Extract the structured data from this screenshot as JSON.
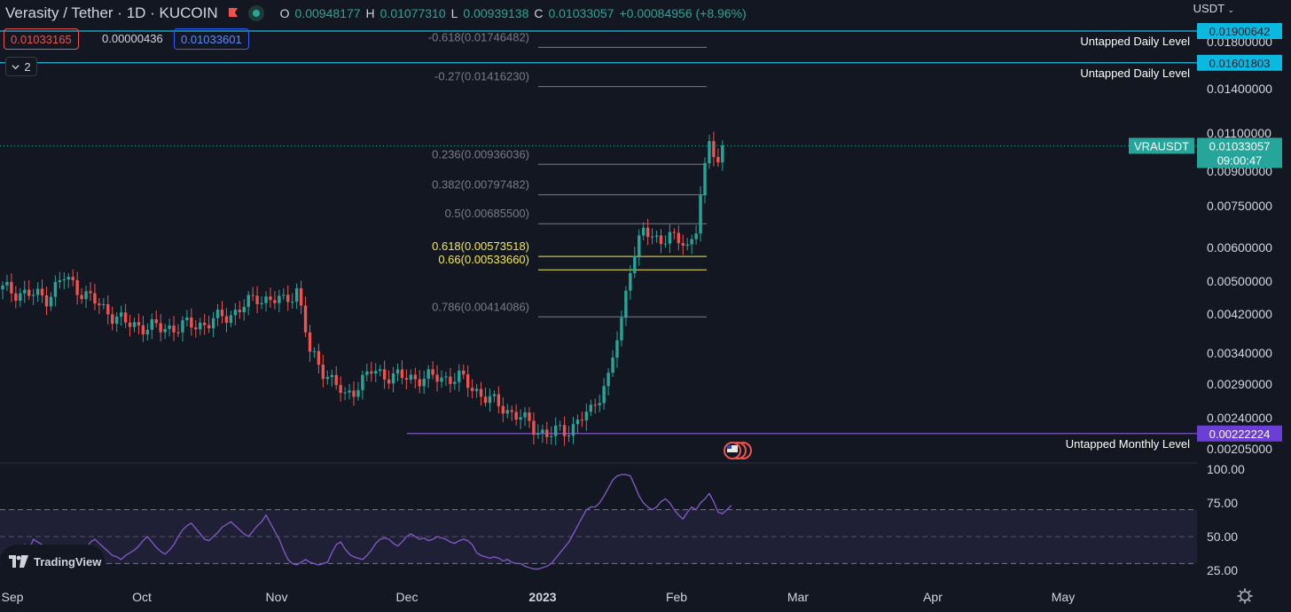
{
  "header": {
    "title": "Verasity / Tether · 1D · KUCOIN",
    "ohlc": [
      {
        "k": "O",
        "v": "0.00948177"
      },
      {
        "k": "H",
        "v": "0.01077310"
      },
      {
        "k": "L",
        "v": "0.00939138"
      },
      {
        "k": "C",
        "v": "0.01033057"
      }
    ],
    "change": "+0.00084956 (+8.96%)"
  },
  "quote": {
    "bid": "0.01033165",
    "spread": "0.00000436",
    "ask": "0.01033601"
  },
  "indicators_count": "2",
  "currency": "USDT",
  "branding": "TradingView",
  "price_axis_labels": [
    {
      "label": "0.01800000",
      "v": 0.018
    },
    {
      "label": "0.01400000",
      "v": 0.014
    },
    {
      "label": "0.01100000",
      "v": 0.011
    },
    {
      "label": "0.00900000",
      "v": 0.009
    },
    {
      "label": "0.00750000",
      "v": 0.0075
    },
    {
      "label": "0.00600000",
      "v": 0.006
    },
    {
      "label": "0.00500000",
      "v": 0.005
    },
    {
      "label": "0.00420000",
      "v": 0.0042
    },
    {
      "label": "0.00340000",
      "v": 0.0034
    },
    {
      "label": "0.00290000",
      "v": 0.0029
    },
    {
      "label": "0.00240000",
      "v": 0.0024
    },
    {
      "label": "0.00205000",
      "v": 0.00205
    }
  ],
  "levels": [
    {
      "name": "Untapped Daily Level",
      "value": "0.01900642",
      "v": 0.01900642,
      "color": "#22b8d8"
    },
    {
      "name": "Untapped Daily Level",
      "value": "0.01601803",
      "v": 0.01601803,
      "color": "#22b8d8"
    },
    {
      "name": "Untapped Monthly Level",
      "value": "0.00222224",
      "v": 0.00222224,
      "color": "#7e57c2"
    }
  ],
  "current_price": {
    "symbol": "VRAUSDT",
    "value": "0.01033057",
    "v": 0.01033057,
    "countdown": "09:00:47"
  },
  "fib_levels": [
    {
      "label": "-0.618(0.01746482)",
      "v": 0.01746482,
      "highlight": false
    },
    {
      "label": "-0.27(0.01416230)",
      "v": 0.0141623,
      "highlight": false
    },
    {
      "label": "0.236(0.00936036)",
      "v": 0.00936036,
      "highlight": false
    },
    {
      "label": "0.382(0.00797482)",
      "v": 0.00797482,
      "highlight": false
    },
    {
      "label": "0.5(0.00685500)",
      "v": 0.006855,
      "highlight": false
    },
    {
      "label": "0.618(0.00573518)",
      "v": 0.00573518,
      "highlight": true
    },
    {
      "label": "0.66(0.00533660)",
      "v": 0.0053366,
      "highlight": true
    },
    {
      "label": "0.786(0.00414086)",
      "v": 0.00414086,
      "highlight": false
    }
  ],
  "rsi": {
    "axis": [
      {
        "label": "100.00",
        "v": 100
      },
      {
        "label": "75.00",
        "v": 75
      },
      {
        "label": "50.00",
        "v": 50
      },
      {
        "label": "25.00",
        "v": 25
      }
    ],
    "band": [
      30,
      70
    ],
    "mid": 50,
    "values": [
      38,
      40,
      43,
      38,
      42,
      44,
      40,
      48,
      46,
      44,
      39,
      37,
      35,
      33,
      34,
      36,
      38,
      40,
      38,
      41,
      46,
      48,
      45,
      42,
      39,
      36,
      35,
      33,
      36,
      38,
      40,
      43,
      47,
      50,
      46,
      42,
      39,
      37,
      40,
      44,
      50,
      55,
      58,
      60,
      56,
      52,
      48,
      47,
      50,
      53,
      57,
      59,
      61,
      58,
      55,
      52,
      50,
      54,
      58,
      61,
      66,
      60,
      54,
      48,
      40,
      33,
      30,
      29,
      31,
      33,
      31,
      30,
      29,
      30,
      31,
      38,
      44,
      46,
      41,
      37,
      35,
      34,
      33,
      36,
      40,
      45,
      48,
      49,
      48,
      45,
      43,
      46,
      50,
      52,
      50,
      48,
      49,
      47,
      48,
      50,
      49,
      48,
      46,
      45,
      47,
      48,
      47,
      44,
      38,
      36,
      35,
      34,
      35,
      34,
      32,
      33,
      31,
      30,
      30,
      28,
      27,
      26,
      26,
      27,
      28,
      30,
      34,
      38,
      42,
      46,
      52,
      58,
      64,
      70,
      72,
      72,
      75,
      80,
      86,
      92,
      95,
      96,
      96,
      95,
      88,
      80,
      75,
      72,
      70,
      72,
      76,
      78,
      75,
      70,
      66,
      63,
      68,
      72,
      70,
      75,
      78,
      82,
      76,
      68,
      67,
      70,
      73
    ]
  },
  "time_axis": [
    "Sep",
    "Oct",
    "Nov",
    "Dec",
    "2023",
    "Feb",
    "Mar",
    "Apr",
    "May"
  ],
  "colors": {
    "up": "#26a69a",
    "down": "#ef5350",
    "rsi": "#7e57c2",
    "fib": "#787b86",
    "fib_highlight": "#f5e94a"
  }
}
